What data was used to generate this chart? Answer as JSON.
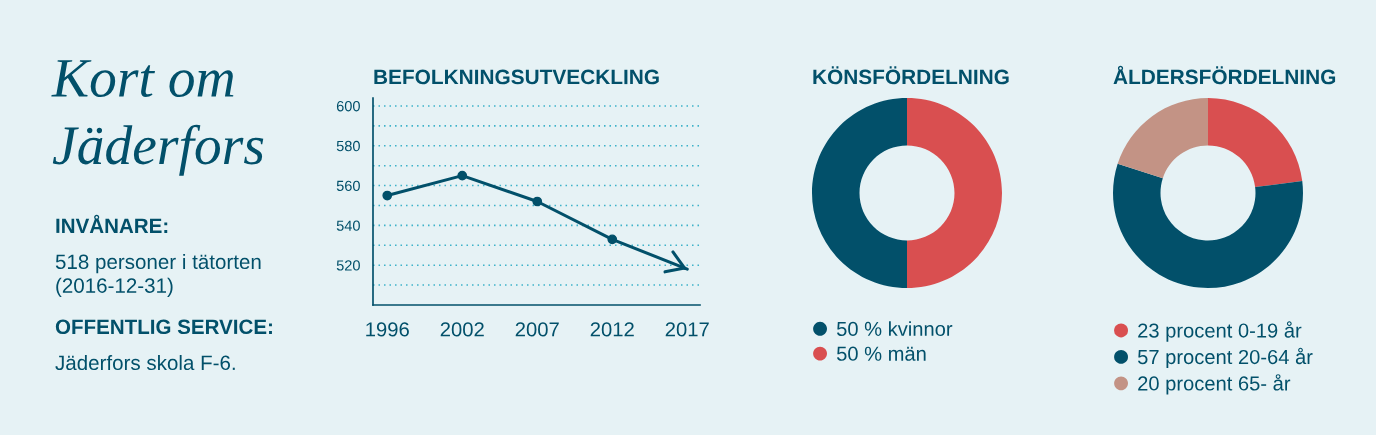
{
  "chart_data": [
    {
      "type": "other",
      "title": "Kort om\nJäderfors",
      "annotations": [
        "INVÅNARE:",
        "518 personer i tätorten\n(2016-12-31)",
        "OFFENTLIG SERVICE:",
        "Jäderfors skola F-6."
      ]
    },
    {
      "type": "line",
      "title": "BEFOLKNINGSUTVECKLING",
      "categories": [
        "1996",
        "2002",
        "2007",
        "2012",
        "2017"
      ],
      "values": [
        555,
        565,
        552,
        533,
        518
      ],
      "color": "#02506a",
      "ylim": [
        500,
        604
      ],
      "yticks": [
        {
          "value": 510,
          "label": null
        },
        520,
        {
          "value": 530,
          "label": null
        },
        540,
        {
          "value": 550,
          "label": null
        },
        560,
        {
          "value": 570,
          "label": null
        },
        580,
        {
          "value": 590,
          "label": null
        },
        600
      ],
      "grid": "y",
      "marker": "circle",
      "line_style": "solid"
    },
    {
      "type": "donut",
      "title": "KÖNSFÖRDELNING",
      "categories": [
        "50 % kvinnor",
        "50 % män"
      ],
      "values": [
        50,
        50
      ],
      "colors": [
        "#02506a",
        "#d94f50"
      ],
      "legend": "bottom"
    },
    {
      "type": "donut",
      "title": "ÅLDERSFÖRDELNING",
      "categories": [
        "23 procent 0-19 år",
        "57 procent 20-64 år",
        "20 procent 65- år"
      ],
      "values": [
        23,
        57,
        20
      ],
      "colors": [
        "#d94f50",
        "#02506a",
        "#c39385"
      ],
      "legend": "bottom"
    }
  ]
}
